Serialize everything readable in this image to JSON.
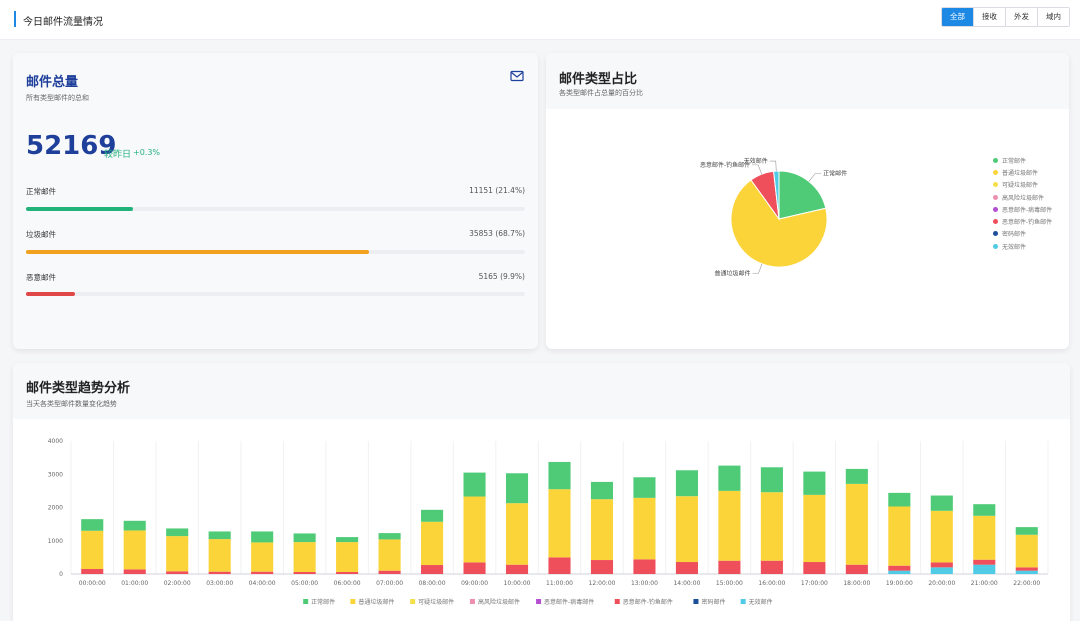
{
  "header": {
    "title": "今日邮件流量情况",
    "tabs": [
      {
        "label": "全部",
        "active": true
      },
      {
        "label": "接收",
        "active": false
      },
      {
        "label": "外发",
        "active": false
      },
      {
        "label": "域内",
        "active": false
      }
    ]
  },
  "total_card": {
    "title": "邮件总量",
    "subtitle": "所有类型邮件的总和",
    "icon": "mail-icon",
    "total": "52169",
    "change_label": "较昨日",
    "change_value": "+0.3%",
    "rows": [
      {
        "label": "正常邮件",
        "value": "11151 (21.4%)",
        "fraction": 0.214,
        "color": "#22b37a"
      },
      {
        "label": "垃圾邮件",
        "value": "35853 (68.7%)",
        "fraction": 0.687,
        "color": "#f0a11d"
      },
      {
        "label": "恶意邮件",
        "value": "5165 (9.9%)",
        "fraction": 0.099,
        "color": "#e04848"
      }
    ]
  },
  "pie_card": {
    "title": "邮件类型占比",
    "subtitle": "各类型邮件占总量的百分比"
  },
  "trend_card": {
    "title": "邮件类型趋势分析",
    "subtitle": "当天各类型邮件数量变化趋势"
  },
  "chart_data": [
    {
      "type": "pie",
      "slices": [
        {
          "name": "正常邮件",
          "value": 21.4,
          "color": "#4fcb78",
          "label": "正常邮件"
        },
        {
          "name": "普通垃圾邮件",
          "value": 68.7,
          "color": "#fbd43a",
          "label": "普通垃圾邮件"
        },
        {
          "name": "可疑垃圾邮件",
          "value": 0,
          "color": "#f5e04a",
          "label": ""
        },
        {
          "name": "高风险垃圾邮件",
          "value": 0,
          "color": "#ee8fb0",
          "label": ""
        },
        {
          "name": "恶意邮件-病毒邮件",
          "value": 0,
          "color": "#b44fd1",
          "label": ""
        },
        {
          "name": "恶意邮件-钓鱼邮件",
          "value": 8.1,
          "color": "#ef4f5b",
          "label": "恶意邮件-钓鱼邮件"
        },
        {
          "name": "密码邮件",
          "value": 0,
          "color": "#1d4e9a",
          "label": ""
        },
        {
          "name": "无效邮件",
          "value": 1.8,
          "color": "#4fcbe6",
          "label": "无效邮件"
        }
      ],
      "legend": [
        "正常邮件",
        "普通垃圾邮件",
        "可疑垃圾邮件",
        "高风险垃圾邮件",
        "恶意邮件-病毒邮件",
        "恶意邮件-钓鱼邮件",
        "密码邮件",
        "无效邮件"
      ],
      "legend_position": "right"
    },
    {
      "type": "bar",
      "stacked": true,
      "categories": [
        "00:00:00",
        "01:00:00",
        "02:00:00",
        "03:00:00",
        "04:00:00",
        "05:00:00",
        "06:00:00",
        "07:00:00",
        "08:00:00",
        "09:00:00",
        "10:00:00",
        "11:00:00",
        "12:00:00",
        "13:00:00",
        "14:00:00",
        "15:00:00",
        "16:00:00",
        "17:00:00",
        "18:00:00",
        "19:00:00",
        "20:00:00",
        "21:00:00",
        "22:00:00"
      ],
      "ylim": [
        0,
        4000
      ],
      "yticks": [
        "0",
        "1000",
        "2000",
        "3000",
        "4000"
      ],
      "grid": "vertical",
      "legend_position": "bottom",
      "series": [
        {
          "name": "无效邮件",
          "color": "#4fcbe6",
          "values": [
            0,
            0,
            0,
            0,
            0,
            0,
            0,
            0,
            0,
            0,
            0,
            0,
            0,
            0,
            0,
            0,
            0,
            0,
            0,
            100,
            200,
            280,
            100
          ]
        },
        {
          "name": "密码邮件",
          "color": "#1d4e9a",
          "values": [
            0,
            0,
            0,
            0,
            0,
            0,
            0,
            0,
            0,
            0,
            0,
            0,
            0,
            0,
            0,
            0,
            0,
            0,
            0,
            0,
            0,
            0,
            0
          ]
        },
        {
          "name": "恶意邮件-钓鱼邮件",
          "color": "#ef4f5b",
          "values": [
            150,
            140,
            80,
            70,
            70,
            60,
            60,
            100,
            270,
            350,
            280,
            500,
            420,
            440,
            360,
            400,
            400,
            360,
            280,
            150,
            150,
            150,
            100
          ]
        },
        {
          "name": "恶意邮件-病毒邮件",
          "color": "#b44fd1",
          "values": [
            0,
            0,
            0,
            0,
            0,
            0,
            0,
            0,
            0,
            0,
            0,
            0,
            0,
            0,
            0,
            0,
            0,
            0,
            0,
            0,
            0,
            0,
            0
          ]
        },
        {
          "name": "高风险垃圾邮件",
          "color": "#ee8fb0",
          "values": [
            0,
            0,
            0,
            0,
            0,
            0,
            0,
            0,
            0,
            0,
            0,
            0,
            0,
            0,
            0,
            0,
            0,
            0,
            0,
            0,
            0,
            0,
            0
          ]
        },
        {
          "name": "可疑垃圾邮件",
          "color": "#f5e04a",
          "values": [
            0,
            0,
            0,
            0,
            0,
            0,
            0,
            0,
            0,
            0,
            0,
            0,
            0,
            0,
            0,
            0,
            0,
            0,
            0,
            0,
            0,
            0,
            0
          ]
        },
        {
          "name": "普通垃圾邮件",
          "color": "#fbd43a",
          "values": [
            1150,
            1170,
            1060,
            980,
            880,
            900,
            900,
            940,
            1300,
            1980,
            1850,
            2050,
            1830,
            1850,
            1980,
            2100,
            2060,
            2020,
            2430,
            1780,
            1550,
            1320,
            980
          ]
        },
        {
          "name": "正常邮件",
          "color": "#4fcb78",
          "values": [
            350,
            290,
            230,
            230,
            330,
            260,
            150,
            190,
            360,
            720,
            900,
            820,
            520,
            620,
            780,
            760,
            750,
            700,
            450,
            410,
            460,
            350,
            230
          ]
        }
      ],
      "legend": [
        "正常邮件",
        "普通垃圾邮件",
        "可疑垃圾邮件",
        "高风险垃圾邮件",
        "恶意邮件-病毒邮件",
        "恶意邮件-钓鱼邮件",
        "密码邮件",
        "无效邮件"
      ]
    }
  ]
}
